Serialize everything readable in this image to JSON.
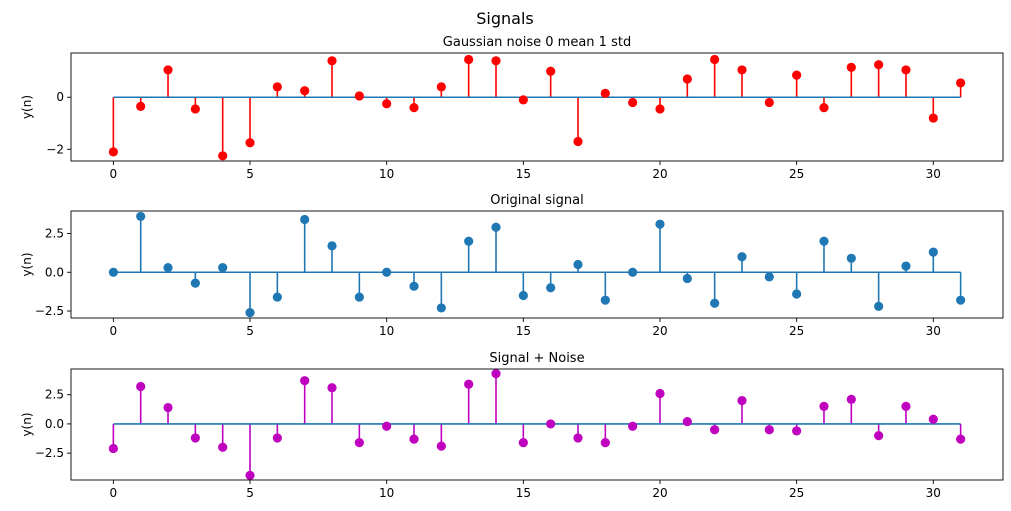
{
  "suptitle": "Signals",
  "chart_data": [
    {
      "type": "stem",
      "title": "Gaussian noise 0 mean 1 std",
      "xlabel": "",
      "ylabel": "y(n)",
      "color": "#ff0000",
      "baseline_color": "#1f77b4",
      "xlim": [
        -1.55,
        32.55
      ],
      "ylim": [
        -2.45,
        1.7
      ],
      "xticks": [
        0,
        5,
        10,
        15,
        20,
        25,
        30
      ],
      "yticks": [
        -2,
        0
      ],
      "ytick_labels": [
        "−2",
        "0"
      ],
      "x": [
        0,
        1,
        2,
        3,
        4,
        5,
        6,
        7,
        8,
        9,
        10,
        11,
        12,
        13,
        14,
        15,
        16,
        17,
        18,
        19,
        20,
        21,
        22,
        23,
        24,
        25,
        26,
        27,
        28,
        29,
        30,
        31
      ],
      "values": [
        -2.1,
        -0.35,
        1.05,
        -0.45,
        -2.25,
        -1.75,
        0.4,
        0.25,
        1.4,
        0.05,
        -0.25,
        -0.4,
        0.4,
        1.45,
        1.4,
        -0.1,
        1.0,
        -1.7,
        0.15,
        -0.2,
        -0.45,
        0.7,
        1.45,
        1.05,
        -0.2,
        0.85,
        -0.4,
        1.15,
        1.25,
        1.05,
        -0.8,
        0.55
      ]
    },
    {
      "type": "stem",
      "title": "Original signal",
      "xlabel": "",
      "ylabel": "y(n)",
      "color": "#1f77b4",
      "baseline_color": "#1f77b4",
      "xlim": [
        -1.55,
        32.55
      ],
      "ylim": [
        -2.95,
        3.95
      ],
      "xticks": [
        0,
        5,
        10,
        15,
        20,
        25,
        30
      ],
      "yticks": [
        -2.5,
        0,
        2.5
      ],
      "ytick_labels": [
        "−2.5",
        "0.0",
        "2.5"
      ],
      "x": [
        0,
        1,
        2,
        3,
        4,
        5,
        6,
        7,
        8,
        9,
        10,
        11,
        12,
        13,
        14,
        15,
        16,
        17,
        18,
        19,
        20,
        21,
        22,
        23,
        24,
        25,
        26,
        27,
        28,
        29,
        30,
        31
      ],
      "values": [
        0.0,
        3.6,
        0.3,
        -0.7,
        0.3,
        -2.6,
        -1.6,
        3.4,
        1.7,
        -1.6,
        0.0,
        -0.9,
        -2.3,
        2.0,
        2.9,
        -1.5,
        -1.0,
        0.5,
        -1.8,
        0.0,
        3.1,
        -0.4,
        -2.0,
        1.0,
        -0.3,
        -1.4,
        2.0,
        0.9,
        -2.2,
        0.4,
        1.3,
        -1.8
      ]
    },
    {
      "type": "stem",
      "title": "Signal + Noise",
      "xlabel": "",
      "ylabel": "y(n)",
      "color": "#bf00bf",
      "baseline_color": "#1f77b4",
      "xlim": [
        -1.55,
        32.55
      ],
      "ylim": [
        -4.8,
        4.7
      ],
      "xticks": [
        0,
        5,
        10,
        15,
        20,
        25,
        30
      ],
      "yticks": [
        -2.5,
        0,
        2.5
      ],
      "ytick_labels": [
        "−2.5",
        "0.0",
        "2.5"
      ],
      "x": [
        0,
        1,
        2,
        3,
        4,
        5,
        6,
        7,
        8,
        9,
        10,
        11,
        12,
        13,
        14,
        15,
        16,
        17,
        18,
        19,
        20,
        21,
        22,
        23,
        24,
        25,
        26,
        27,
        28,
        29,
        30,
        31
      ],
      "values": [
        -2.1,
        3.2,
        1.4,
        -1.2,
        -2.0,
        -4.4,
        -1.2,
        3.7,
        3.1,
        -1.6,
        -0.2,
        -1.3,
        -1.9,
        3.4,
        4.3,
        -1.6,
        0.0,
        -1.2,
        -1.6,
        -0.2,
        2.6,
        0.2,
        -0.5,
        2.0,
        -0.5,
        -0.6,
        1.5,
        2.1,
        -1.0,
        1.5,
        0.4,
        -1.3
      ]
    }
  ]
}
